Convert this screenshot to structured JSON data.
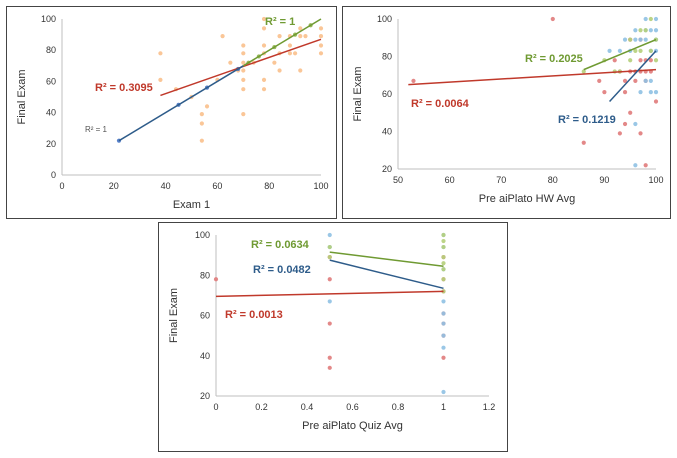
{
  "chart_data": [
    {
      "type": "scatter",
      "xlabel": "Exam 1",
      "ylabel": "Final Exam",
      "xlim": [
        0,
        100
      ],
      "ylim": [
        0,
        100
      ],
      "xticks": [
        0,
        20,
        40,
        60,
        80,
        100
      ],
      "yticks": [
        0,
        20,
        40,
        60,
        80,
        100
      ],
      "grid": false,
      "series": [
        {
          "color": "#f9c08c",
          "points": [
            [
              38,
              78
            ],
            [
              38,
              61
            ],
            [
              44,
              55
            ],
            [
              50,
              50
            ],
            [
              54,
              39
            ],
            [
              54,
              33
            ],
            [
              54,
              22
            ],
            [
              56,
              44
            ],
            [
              60,
              61
            ],
            [
              62,
              89
            ],
            [
              65,
              72
            ],
            [
              68,
              67
            ],
            [
              70,
              83
            ],
            [
              70,
              78
            ],
            [
              70,
              72
            ],
            [
              70,
              67
            ],
            [
              70,
              61
            ],
            [
              70,
              55
            ],
            [
              70,
              39
            ],
            [
              74,
              72
            ],
            [
              78,
              100
            ],
            [
              78,
              94
            ],
            [
              78,
              83
            ],
            [
              78,
              78
            ],
            [
              78,
              61
            ],
            [
              78,
              55
            ],
            [
              82,
              72
            ],
            [
              84,
              89
            ],
            [
              84,
              78
            ],
            [
              84,
              67
            ],
            [
              88,
              89
            ],
            [
              88,
              83
            ],
            [
              88,
              78
            ],
            [
              90,
              78
            ],
            [
              92,
              94
            ],
            [
              92,
              89
            ],
            [
              92,
              67
            ],
            [
              94,
              89
            ],
            [
              100,
              94
            ],
            [
              100,
              89
            ],
            [
              100,
              83
            ],
            [
              100,
              78
            ]
          ]
        },
        {
          "color": "#4472c4",
          "points": [
            [
              22,
              22
            ],
            [
              45,
              45
            ],
            [
              56,
              56
            ],
            [
              68,
              68
            ]
          ]
        },
        {
          "color": "#8fb24a",
          "points": [
            [
              72,
              72
            ],
            [
              76,
              76
            ],
            [
              82,
              82
            ],
            [
              90,
              90
            ],
            [
              96,
              96
            ]
          ]
        }
      ],
      "trendlines": [
        {
          "color": "#c0392b",
          "from": [
            38,
            51
          ],
          "to": [
            100,
            87
          ],
          "label": "R² = 0.3095"
        },
        {
          "color": "#2e5c8a",
          "from": [
            22,
            22
          ],
          "to": [
            70,
            70
          ],
          "label": "R² = 1"
        },
        {
          "color": "#6f9a32",
          "from": [
            70,
            70
          ],
          "to": [
            100,
            100
          ],
          "label": "R² = 1"
        }
      ]
    },
    {
      "type": "scatter",
      "xlabel": "Pre aiPlato HW Avg",
      "ylabel": "Final Exam",
      "xlim": [
        50,
        100
      ],
      "ylim": [
        20,
        100
      ],
      "xticks": [
        50,
        60,
        70,
        80,
        90,
        100
      ],
      "yticks": [
        20,
        40,
        60,
        80,
        100
      ],
      "grid": false,
      "series": [
        {
          "color": "#e07b7b",
          "points": [
            [
              53,
              67
            ],
            [
              80,
              100
            ],
            [
              86,
              34
            ],
            [
              89,
              67
            ],
            [
              90,
              61
            ],
            [
              92,
              78
            ],
            [
              93,
              72
            ],
            [
              94,
              67
            ],
            [
              94,
              61
            ],
            [
              95,
              89
            ],
            [
              95,
              72
            ],
            [
              96,
              72
            ],
            [
              96,
              67
            ],
            [
              97,
              89
            ],
            [
              97,
              78
            ],
            [
              97,
              72
            ],
            [
              98,
              78
            ],
            [
              98,
              72
            ],
            [
              98,
              67
            ],
            [
              99,
              78
            ],
            [
              99,
              72
            ],
            [
              100,
              56
            ],
            [
              93,
              39
            ],
            [
              94,
              44
            ],
            [
              95,
              50
            ],
            [
              97,
              39
            ],
            [
              98,
              22
            ]
          ]
        },
        {
          "color": "#8fc1e3",
          "points": [
            [
              91,
              83
            ],
            [
              93,
              83
            ],
            [
              94,
              89
            ],
            [
              95,
              83
            ],
            [
              96,
              94
            ],
            [
              96,
              89
            ],
            [
              97,
              89
            ],
            [
              98,
              100
            ],
            [
              98,
              94
            ],
            [
              98,
              89
            ],
            [
              99,
              94
            ],
            [
              99,
              83
            ],
            [
              100,
              100
            ],
            [
              100,
              94
            ],
            [
              100,
              89
            ],
            [
              100,
              83
            ],
            [
              96,
              22
            ],
            [
              96,
              44
            ],
            [
              97,
              61
            ],
            [
              98,
              67
            ],
            [
              99,
              61
            ],
            [
              99,
              67
            ],
            [
              100,
              61
            ]
          ]
        },
        {
          "color": "#b5cf7a",
          "points": [
            [
              86,
              72
            ],
            [
              90,
              78
            ],
            [
              92,
              72
            ],
            [
              93,
              72
            ],
            [
              95,
              78
            ],
            [
              96,
              83
            ],
            [
              97,
              94
            ],
            [
              98,
              94
            ],
            [
              99,
              100
            ],
            [
              99,
              83
            ],
            [
              100,
              89
            ],
            [
              100,
              78
            ],
            [
              95,
              89
            ],
            [
              97,
              83
            ]
          ]
        }
      ],
      "trendlines": [
        {
          "color": "#c0392b",
          "from": [
            52,
            65
          ],
          "to": [
            100,
            73
          ],
          "label": "R² = 0.0064"
        },
        {
          "color": "#2e5c8a",
          "from": [
            91,
            56
          ],
          "to": [
            100,
            83
          ],
          "label": "R² = 0.1219"
        },
        {
          "color": "#6f9a32",
          "from": [
            86,
            73
          ],
          "to": [
            100,
            89
          ],
          "label": "R² = 0.2025"
        }
      ]
    },
    {
      "type": "scatter",
      "xlabel": "Pre aiPlato Quiz Avg",
      "ylabel": "Final Exam",
      "xlim": [
        0,
        1.2
      ],
      "ylim": [
        20,
        100
      ],
      "xticks": [
        0,
        0.2,
        0.4,
        0.6,
        0.8,
        1,
        1.2
      ],
      "yticks": [
        20,
        40,
        60,
        80,
        100
      ],
      "grid": false,
      "series": [
        {
          "color": "#e07b7b",
          "points": [
            [
              0,
              78
            ],
            [
              0.5,
              89
            ],
            [
              0.5,
              78
            ],
            [
              0.5,
              56
            ],
            [
              0.5,
              39
            ],
            [
              0.5,
              34
            ],
            [
              1,
              89
            ],
            [
              1,
              78
            ],
            [
              1,
              72
            ],
            [
              1,
              61
            ],
            [
              1,
              56
            ],
            [
              1,
              50
            ],
            [
              1,
              39
            ]
          ]
        },
        {
          "color": "#8fc1e3",
          "points": [
            [
              0.5,
              100
            ],
            [
              0.5,
              94
            ],
            [
              0.5,
              67
            ],
            [
              1,
              100
            ],
            [
              1,
              94
            ],
            [
              1,
              83
            ],
            [
              1,
              67
            ],
            [
              1,
              61
            ],
            [
              1,
              56
            ],
            [
              1,
              50
            ],
            [
              1,
              44
            ],
            [
              1,
              22
            ]
          ]
        },
        {
          "color": "#b5cf7a",
          "points": [
            [
              0.5,
              94
            ],
            [
              0.5,
              89
            ],
            [
              1,
              100
            ],
            [
              1,
              97
            ],
            [
              1,
              94
            ],
            [
              1,
              89
            ],
            [
              1,
              86
            ],
            [
              1,
              83
            ],
            [
              1,
              78
            ],
            [
              1,
              72
            ]
          ]
        }
      ],
      "trendlines": [
        {
          "color": "#c0392b",
          "from": [
            0,
            69.5
          ],
          "to": [
            1,
            72
          ],
          "label": "R² = 0.0013"
        },
        {
          "color": "#2e5c8a",
          "from": [
            0.5,
            87.5
          ],
          "to": [
            1,
            73.5
          ],
          "label": "R² = 0.0482"
        },
        {
          "color": "#6f9a32",
          "from": [
            0.5,
            91.5
          ],
          "to": [
            1,
            84.5
          ],
          "label": "R² = 0.0634"
        }
      ]
    }
  ]
}
